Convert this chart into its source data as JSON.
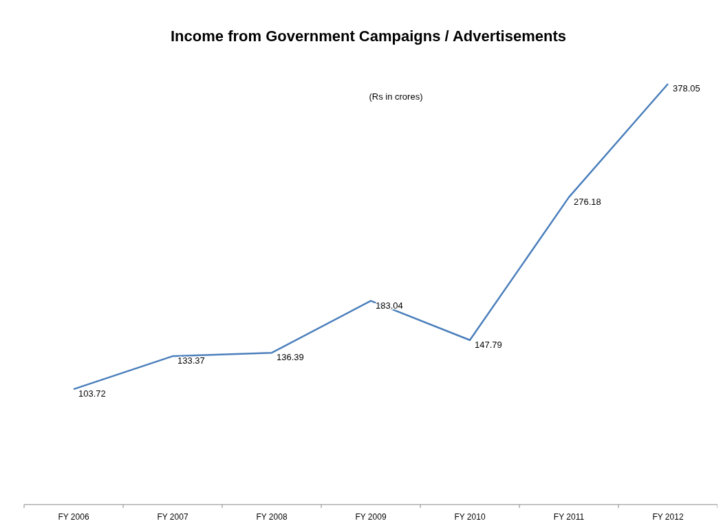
{
  "chart_data": {
    "type": "line",
    "title": "Income from Government Campaigns / Advertisements",
    "subtitle": "(Rs in crores)",
    "categories": [
      "FY 2006",
      "FY 2007",
      "FY 2008",
      "FY 2009",
      "FY 2010",
      "FY 2011",
      "FY 2012"
    ],
    "series": [
      {
        "color": "#4a7ebb",
        "values": [
          103.72,
          133.37,
          136.39,
          183.04,
          147.79,
          276.18,
          378.05
        ]
      }
    ],
    "data_labels": true,
    "marker": "none",
    "line_style": "solid"
  }
}
